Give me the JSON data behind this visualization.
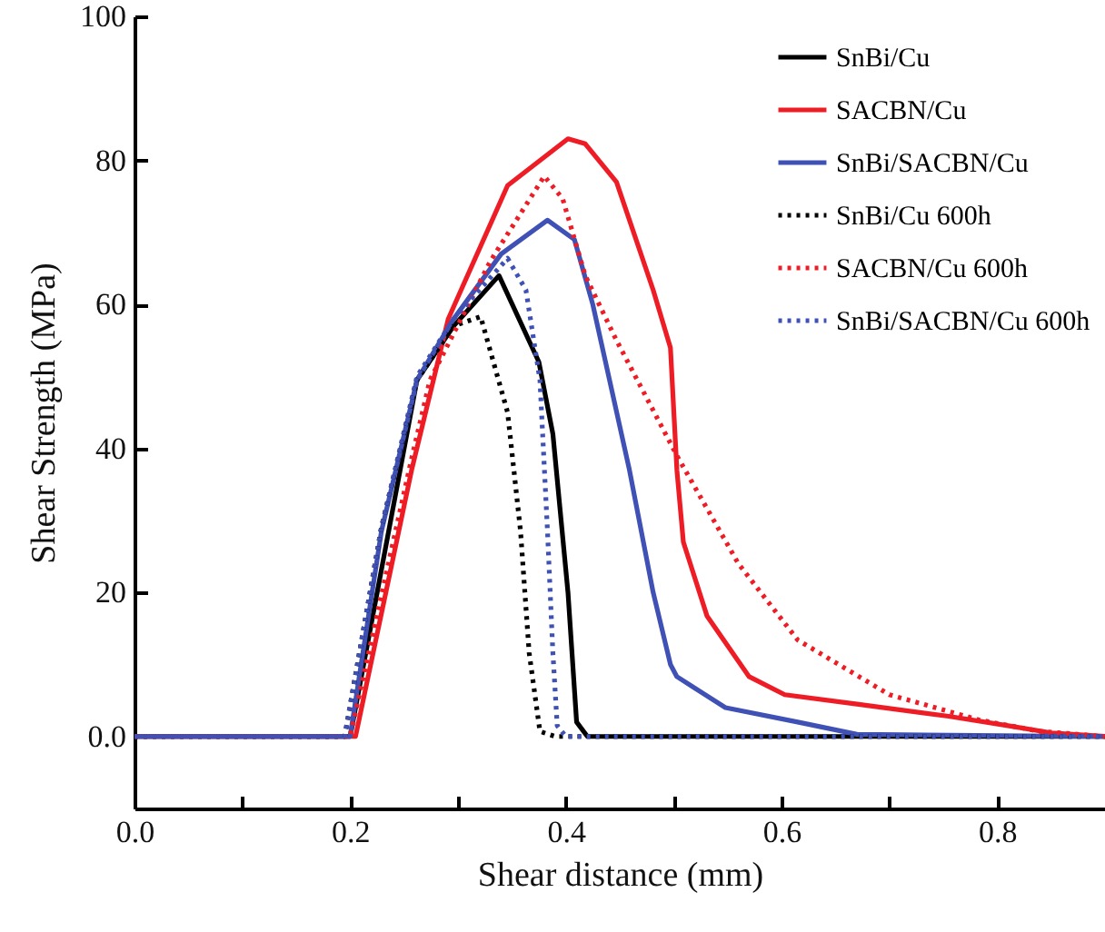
{
  "chart_data": {
    "type": "line",
    "xlabel": "Shear distance (mm)",
    "ylabel": "Shear Strength (MPa)",
    "xlim": [
      0,
      0.9
    ],
    "ylim": [
      -10,
      100
    ],
    "xticks": [
      {
        "value": 0,
        "label": "0.0"
      },
      {
        "value": 0.1,
        "label": null
      },
      0.2,
      {
        "value": 0.3,
        "label": null
      },
      0.4,
      {
        "value": 0.5,
        "label": null
      },
      0.6,
      {
        "value": 0.7,
        "label": null
      },
      0.8
    ],
    "yticks": [
      {
        "value": 0,
        "label": "0.0"
      },
      20,
      40,
      60,
      80,
      100
    ],
    "grid": false,
    "legend": "top right",
    "series": [
      {
        "name": "SnBi/Cu",
        "color": "#000000",
        "line_style": "solid",
        "x": [
          0,
          0.1,
          0.2,
          0.262,
          0.296,
          0.338,
          0.375,
          0.388,
          0.402,
          0.41,
          0.42,
          0.6,
          0.9
        ],
        "values": [
          0,
          0,
          0,
          49.5,
          57,
          64,
          52,
          42,
          20,
          2,
          0,
          0,
          0
        ]
      },
      {
        "name": "SACBN/Cu",
        "color": "#ee1c25",
        "line_style": "solid",
        "x": [
          0,
          0.1,
          0.205,
          0.257,
          0.291,
          0.346,
          0.402,
          0.418,
          0.447,
          0.481,
          0.497,
          0.503,
          0.509,
          0.531,
          0.57,
          0.603,
          0.67,
          0.755,
          0.81,
          0.85,
          0.9
        ],
        "values": [
          0,
          0,
          0,
          37,
          58,
          76.5,
          83,
          82.3,
          77,
          62,
          54,
          37,
          27,
          16.7,
          8.3,
          5.8,
          4.5,
          2.8,
          1.5,
          0.5,
          0
        ]
      },
      {
        "name": "SnBi/SACBN/Cu",
        "color": "#3f51b5",
        "line_style": "solid",
        "x": [
          0,
          0.1,
          0.2,
          0.229,
          0.262,
          0.296,
          0.34,
          0.383,
          0.408,
          0.425,
          0.459,
          0.481,
          0.497,
          0.503,
          0.548,
          0.615,
          0.67,
          0.9
        ],
        "values": [
          0,
          0,
          0,
          28.5,
          49.5,
          58,
          67,
          71.7,
          69,
          60,
          37,
          20,
          10,
          8.3,
          4,
          2,
          0.3,
          0
        ]
      },
      {
        "name": "SnBi/Cu 600h",
        "color": "#000000",
        "line_style": "dotted",
        "x": [
          0,
          0.1,
          0.195,
          0.229,
          0.262,
          0.296,
          0.321,
          0.346,
          0.358,
          0.366,
          0.376,
          0.39,
          0.9
        ],
        "values": [
          0,
          0,
          0,
          29,
          49.5,
          57,
          58.3,
          45,
          28.5,
          11.6,
          0.7,
          0,
          0
        ]
      },
      {
        "name": "SACBN/Cu 600h",
        "color": "#ee1c25",
        "line_style": "dotted",
        "x": [
          0,
          0.1,
          0.2,
          0.257,
          0.274,
          0.33,
          0.38,
          0.397,
          0.418,
          0.447,
          0.503,
          0.56,
          0.615,
          0.7,
          0.783,
          0.84,
          0.9
        ],
        "values": [
          0,
          0,
          0,
          38.6,
          49.5,
          66,
          77.8,
          74.7,
          64,
          55,
          39,
          24,
          13.4,
          5.8,
          2.3,
          0.7,
          0
        ]
      },
      {
        "name": "SnBi/SACBN/Cu 600h",
        "color": "#3f51b5",
        "line_style": "dotted",
        "x": [
          0,
          0.1,
          0.195,
          0.229,
          0.262,
          0.296,
          0.346,
          0.363,
          0.376,
          0.383,
          0.388,
          0.392,
          0.4,
          0.9
        ],
        "values": [
          0,
          0,
          0,
          29,
          50,
          58,
          66.4,
          62,
          49.5,
          28.5,
          11.6,
          1.5,
          0,
          0
        ]
      }
    ]
  }
}
